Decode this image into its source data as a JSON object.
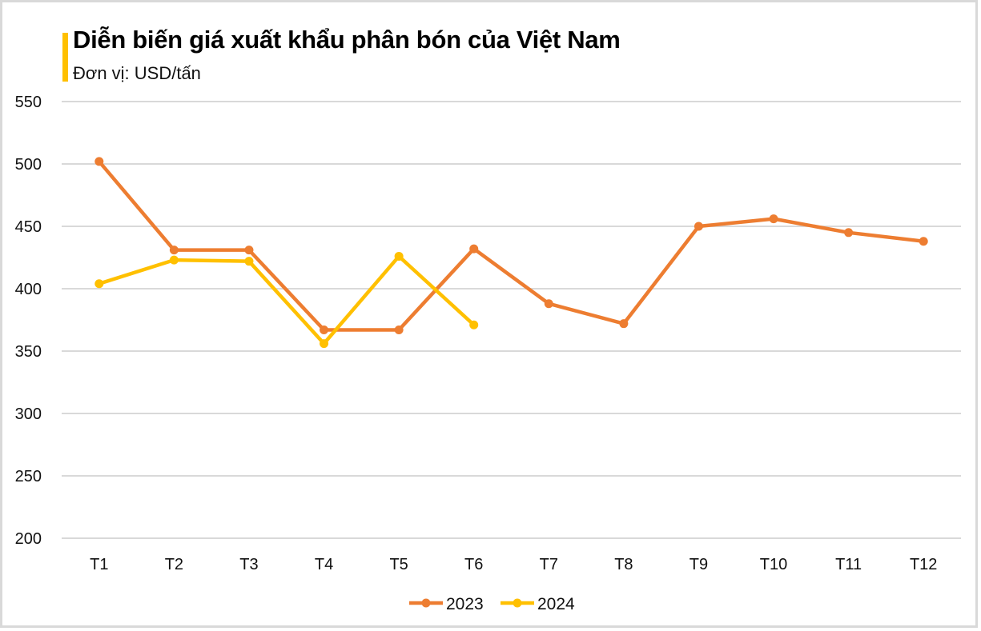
{
  "header": {
    "title": "Diễn biến giá xuất khẩu phân bón của Việt Nam",
    "subtitle": "Đơn vị: USD/tấn",
    "accent_color": "#FFC000"
  },
  "colors": {
    "series_2023": "#ED7D31",
    "series_2024": "#FFC000",
    "grid": "#d9d9d9",
    "border": "#d9d9d9"
  },
  "legend": {
    "items": [
      {
        "label": "2023",
        "color": "#ED7D31"
      },
      {
        "label": "2024",
        "color": "#FFC000"
      }
    ],
    "position": "bottom"
  },
  "chart_data": {
    "type": "line",
    "title": "Diễn biến giá xuất khẩu phân bón của Việt Nam",
    "subtitle": "Đơn vị: USD/tấn",
    "xlabel": "",
    "ylabel": "USD/tấn",
    "categories": [
      "T1",
      "T2",
      "T3",
      "T4",
      "T5",
      "T6",
      "T7",
      "T8",
      "T9",
      "T10",
      "T11",
      "T12"
    ],
    "series": [
      {
        "name": "2023",
        "color": "#ED7D31",
        "values": [
          502,
          431,
          431,
          367,
          367,
          432,
          388,
          372,
          450,
          456,
          445,
          438
        ]
      },
      {
        "name": "2024",
        "color": "#FFC000",
        "values": [
          404,
          423,
          422,
          356,
          426,
          371,
          null,
          null,
          null,
          null,
          null,
          null
        ]
      }
    ],
    "ylim": [
      200,
      550
    ],
    "yticks": [
      200,
      250,
      300,
      350,
      400,
      450,
      500,
      550
    ],
    "grid": true,
    "legend_position": "bottom"
  }
}
